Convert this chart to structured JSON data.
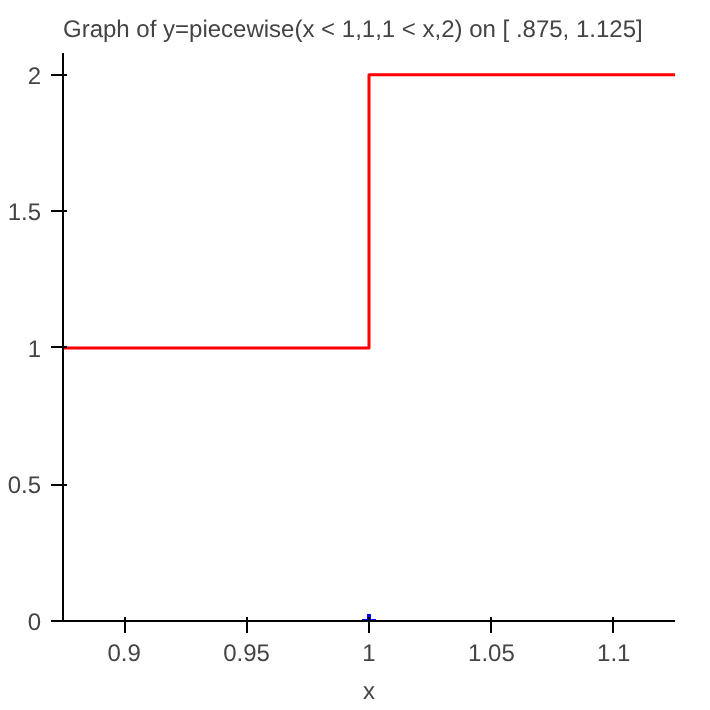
{
  "chart_data": {
    "type": "line",
    "title": "Graph of y=piecewise(x < 1,1,1 < x,2) on [  .875, 1.125]",
    "xlabel": "x",
    "series": [
      {
        "color": "#ff0000",
        "x": [
          0.875,
          1,
          1,
          1.125
        ],
        "values": [
          1,
          1,
          2,
          2
        ]
      },
      {
        "type": "scatter",
        "color": "#0000ff",
        "marker": "cross",
        "x": [
          1
        ],
        "values": [
          0
        ]
      }
    ],
    "xlim": [
      0.875,
      1.125
    ],
    "ylim": [
      0,
      2.08
    ],
    "xticks": [
      0.9,
      0.95,
      1,
      1.05,
      1.1
    ],
    "yticks": [
      0,
      0.5,
      1,
      1.5,
      2
    ],
    "grid": false
  }
}
